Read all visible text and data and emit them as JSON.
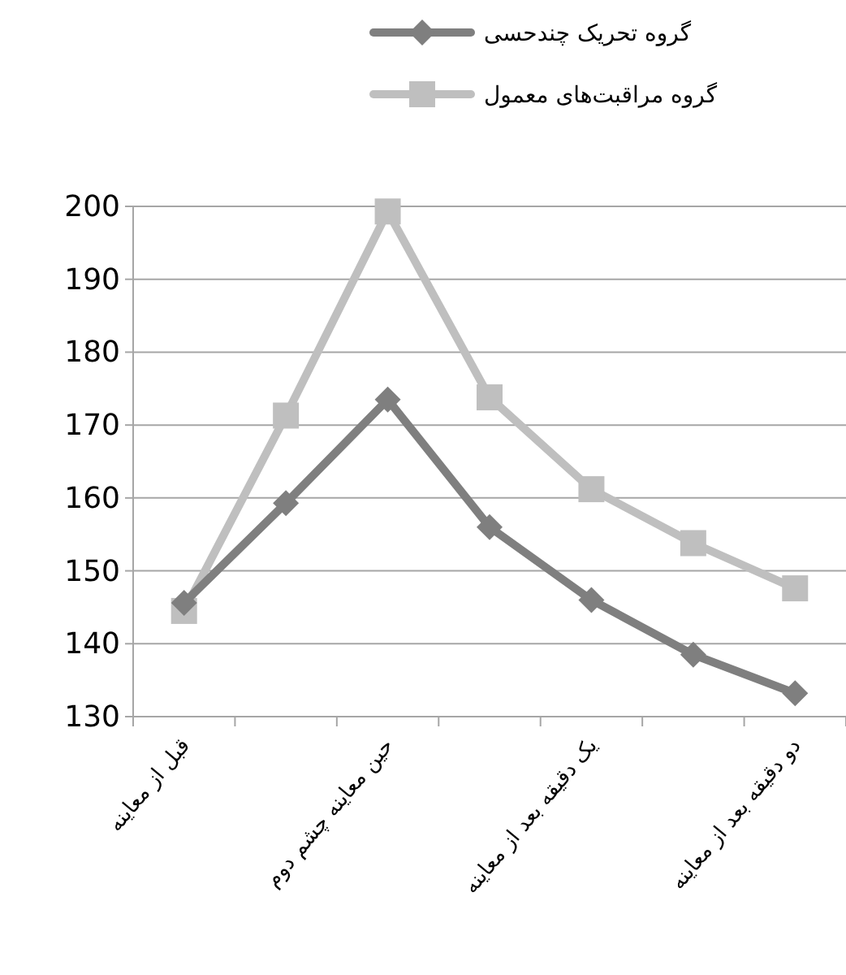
{
  "chart_data": {
    "type": "line",
    "categories": [
      "قبل از معاینه",
      null,
      "حین معاینه چشم دوم",
      null,
      "یک دقیقه بعد از معاینه",
      null,
      "دو دقیقه بعد از معاینه"
    ],
    "series": [
      {
        "name": "گروه تحریک چندحسی",
        "color": "#7f7f7f",
        "marker": "diamond",
        "values": [
          145.6,
          159.3,
          173.5,
          156,
          146,
          138.5,
          133.2
        ]
      },
      {
        "name": "گروه مراقبت‌های معمول",
        "color": "#bfbfbf",
        "marker": "square",
        "values": [
          144.5,
          171.3,
          199.3,
          173.8,
          161.2,
          153.8,
          147.6
        ]
      }
    ],
    "ylim": [
      130,
      200
    ],
    "yticks": [
      130,
      140,
      150,
      160,
      170,
      180,
      190,
      200
    ],
    "grid": "y",
    "legend": "top",
    "line_style": "solid"
  }
}
